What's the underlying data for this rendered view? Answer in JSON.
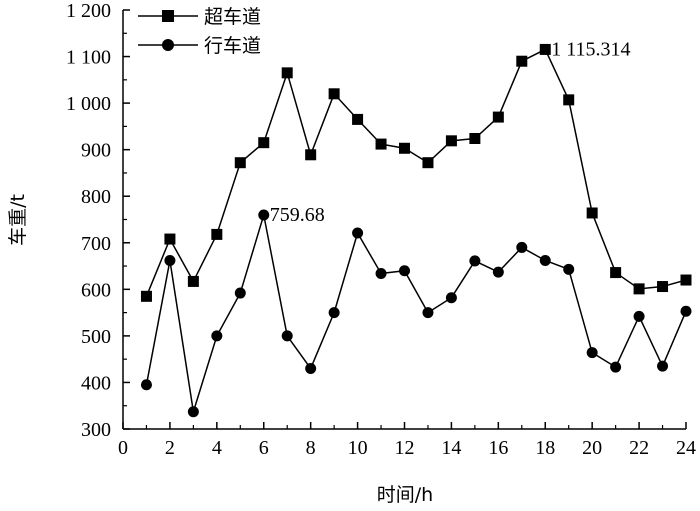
{
  "chart_data": {
    "type": "line",
    "xlabel": "时间/h",
    "ylabel": "车重/t",
    "xlim": [
      0,
      24
    ],
    "ylim": [
      300,
      1200
    ],
    "xticks": [
      0,
      2,
      4,
      6,
      8,
      10,
      12,
      14,
      16,
      18,
      20,
      22,
      24
    ],
    "yticks": [
      300,
      400,
      500,
      600,
      700,
      800,
      900,
      1000,
      1100,
      1200
    ],
    "xtick_labels": [
      "0",
      "2",
      "4",
      "6",
      "8",
      "10",
      "12",
      "14",
      "16",
      "18",
      "20",
      "22",
      "24"
    ],
    "ytick_labels": [
      "300",
      "400",
      "500",
      "600",
      "700",
      "800",
      "900",
      "1 000",
      "1 100",
      "1 200"
    ],
    "grid": false,
    "legend_position": "top-left",
    "x": [
      1,
      2,
      3,
      4,
      5,
      6,
      7,
      8,
      9,
      10,
      11,
      12,
      13,
      14,
      15,
      16,
      17,
      18,
      19,
      20,
      21,
      22,
      23,
      24
    ],
    "series": [
      {
        "name": "超车道",
        "marker": "square",
        "values": [
          585,
          708,
          617,
          718,
          872,
          915,
          1065,
          889,
          1020,
          965,
          912,
          903,
          872,
          919,
          924,
          970,
          1090,
          1115.314,
          1007,
          764,
          636,
          601,
          606,
          620
        ]
      },
      {
        "name": "行车道",
        "marker": "circle",
        "values": [
          395,
          662,
          337,
          500,
          592,
          759.68,
          500,
          430,
          550,
          721,
          634,
          640,
          550,
          582,
          661,
          637,
          690,
          662,
          643,
          464,
          433,
          542,
          435,
          553
        ]
      }
    ],
    "annotations": [
      {
        "x": 18,
        "y": 1115.314,
        "text": "1 115.314"
      },
      {
        "x": 6,
        "y": 759.68,
        "text": "759.68"
      }
    ]
  }
}
